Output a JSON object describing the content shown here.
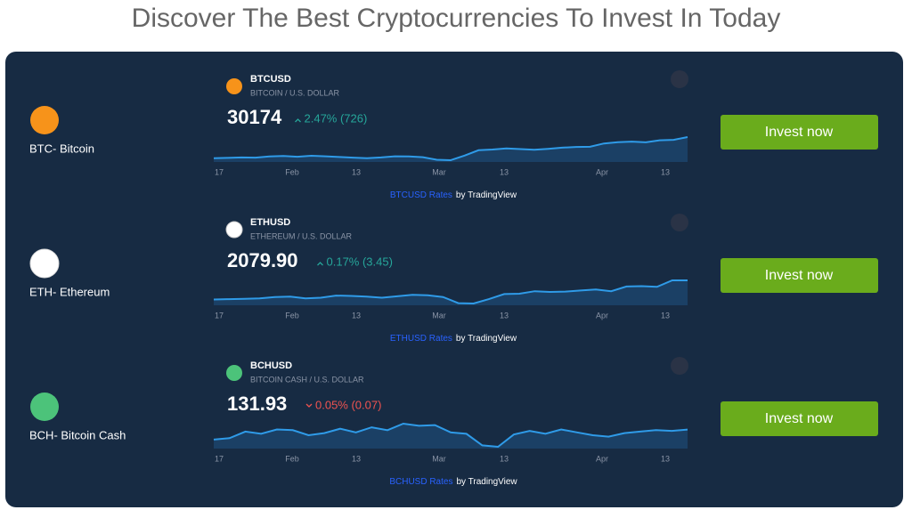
{
  "header": {
    "title": "Discover The Best Cryptocurrencies To Invest In Today"
  },
  "x_labels": [
    "17",
    "Feb",
    "13",
    "Mar",
    "13",
    "Apr",
    "13"
  ],
  "rows": [
    {
      "label": "BTC- Bitcoin",
      "icon_color": "#f7931a",
      "symbol": "BTCUSD",
      "description": "BITCOIN / U.S. DOLLAR",
      "price": "30174",
      "change": "2.47% (726)",
      "trend": "up",
      "link": "BTCUSD Rates",
      "credit": "by TradingView",
      "button": "Invest now",
      "chart": {
        "type": "area",
        "values": [
          21100,
          21200,
          21400,
          21300,
          21800,
          22000,
          21700,
          22100,
          21900,
          21600,
          21300,
          21100,
          21400,
          21900,
          21800,
          21500,
          20400,
          20200,
          22200,
          24500,
          24800,
          25300,
          25000,
          24700,
          25100,
          25600,
          25900,
          26000,
          27400,
          28000,
          28200,
          27900,
          28800,
          29000,
          30174
        ]
      }
    },
    {
      "label": "ETH- Ethereum",
      "icon_color": "#ffffff",
      "symbol": "ETHUSD",
      "description": "ETHEREUM / U.S. DOLLAR",
      "price": "2079.90",
      "change": "0.17% (3.45)",
      "trend": "up",
      "link": "ETHUSD Rates",
      "credit": "by TradingView",
      "button": "Invest now",
      "chart": {
        "type": "area",
        "values": [
          1550,
          1560,
          1570,
          1580,
          1620,
          1630,
          1580,
          1600,
          1660,
          1650,
          1630,
          1600,
          1640,
          1680,
          1670,
          1620,
          1450,
          1440,
          1560,
          1700,
          1710,
          1780,
          1760,
          1770,
          1800,
          1830,
          1780,
          1910,
          1920,
          1900,
          2080,
          2079.9
        ]
      }
    },
    {
      "label": "BCH- Bitcoin Cash",
      "icon_color": "#4cc37a",
      "symbol": "BCHUSD",
      "description": "BITCOIN CASH / U.S. DOLLAR",
      "price": "131.93",
      "change": "0.05% (0.07)",
      "trend": "down",
      "link": "BCHUSD Rates",
      "credit": "by TradingView",
      "button": "Invest now",
      "chart": {
        "type": "area",
        "values": [
          118,
          120,
          129,
          126,
          132,
          131,
          124,
          127,
          133,
          128,
          135,
          131,
          140,
          137,
          138,
          128,
          126,
          110,
          108,
          125,
          130,
          126,
          132,
          128,
          124,
          122,
          127,
          129,
          131,
          130,
          131.93
        ]
      }
    }
  ]
}
